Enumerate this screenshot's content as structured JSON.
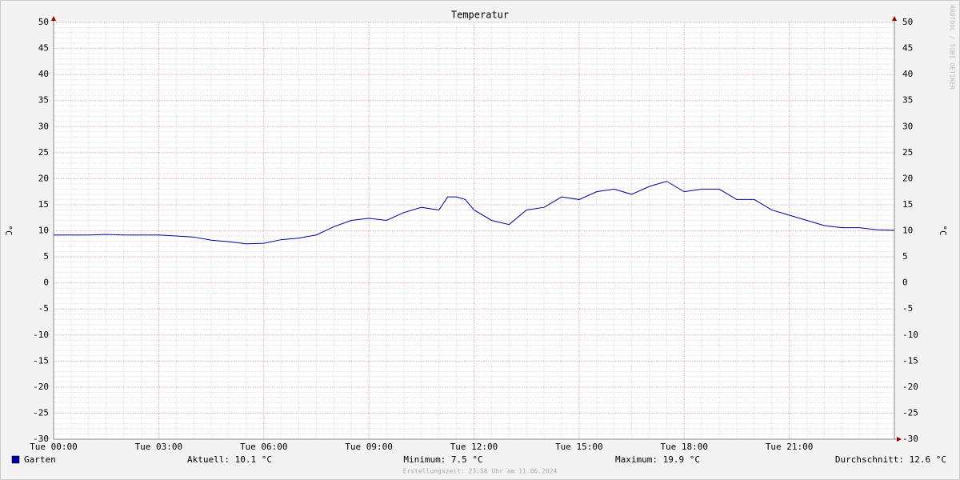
{
  "chart_data": {
    "type": "line",
    "title": "Temperatur",
    "y_label": "°C",
    "y2_label": "°C",
    "watermark": "RRDTOOL / TOBI OETIKER",
    "footer": "Erstellungszeit: 23:58 Uhr am 11.06.2024",
    "x": [
      0,
      0.5,
      1,
      1.5,
      2,
      2.5,
      3,
      3.5,
      4,
      4.5,
      5,
      5.5,
      6,
      6.5,
      7,
      7.5,
      8,
      8.5,
      9,
      9.5,
      10,
      10.5,
      11,
      11.25,
      11.5,
      11.75,
      12,
      12.5,
      13,
      13.5,
      14,
      14.5,
      15,
      15.5,
      16,
      16.5,
      17,
      17.5,
      18,
      18.5,
      19,
      19.5,
      20,
      20.5,
      21,
      21.5,
      22,
      22.5,
      23,
      23.5,
      24
    ],
    "series": [
      {
        "name": "Garten",
        "color": "#000099",
        "values": [
          9.2,
          9.2,
          9.2,
          9.3,
          9.2,
          9.2,
          9.2,
          9.0,
          8.8,
          8.2,
          7.9,
          7.5,
          7.6,
          8.3,
          8.6,
          9.2,
          10.8,
          12.0,
          12.4,
          12.0,
          13.5,
          14.5,
          14.0,
          16.5,
          16.5,
          16.0,
          14.0,
          12.0,
          11.2,
          14.0,
          14.5,
          16.5,
          16.0,
          17.5,
          18.0,
          17.0,
          18.5,
          19.5,
          17.5,
          18.0,
          18.0,
          16.0,
          16.0,
          14.0,
          13.0,
          12.0,
          11.0,
          10.6,
          10.6,
          10.2,
          10.1
        ]
      }
    ],
    "xlim": [
      0,
      24
    ],
    "xticks": [
      {
        "value": 0,
        "label": "Tue 00:00"
      },
      {
        "value": 3,
        "label": "Tue 03:00"
      },
      {
        "value": 6,
        "label": "Tue 06:00"
      },
      {
        "value": 9,
        "label": "Tue 09:00"
      },
      {
        "value": 12,
        "label": "Tue 12:00"
      },
      {
        "value": 15,
        "label": "Tue 15:00"
      },
      {
        "value": 18,
        "label": "Tue 18:00"
      },
      {
        "value": 21,
        "label": "Tue 21:00"
      }
    ],
    "ylim": [
      -30,
      50
    ],
    "yticks": [
      -30,
      -25,
      -20,
      -15,
      -10,
      -5,
      0,
      5,
      10,
      15,
      20,
      25,
      30,
      35,
      40,
      45,
      50
    ],
    "y_minor_step": 1,
    "x_minor_step": 0.5,
    "grid": true,
    "legend_stats": [
      "Aktuell: 10.1 °C",
      "Minimum: 7.5 °C",
      "Maximum: 19.9 °C",
      "Durchschnitt: 12.6 °C"
    ]
  }
}
